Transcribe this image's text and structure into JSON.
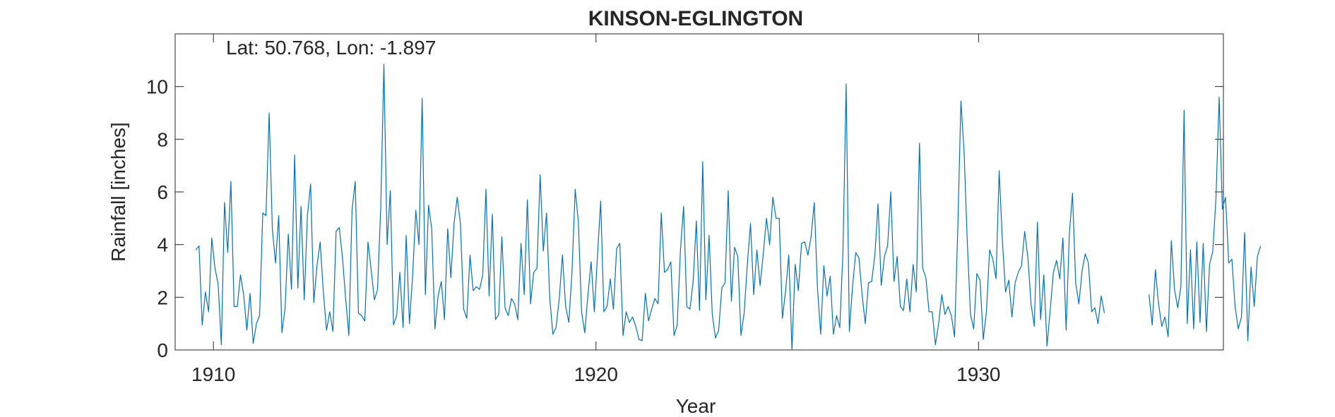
{
  "chart_data": {
    "type": "line",
    "title": "KINSON-EGLINGTON",
    "annotation": "Lat: 50.768, Lon: -1.897",
    "xlabel": "Year",
    "ylabel": "Rainfall [inches]",
    "xlim": [
      1909.0,
      1936.4
    ],
    "ylim": [
      0,
      12
    ],
    "x_ticks": [
      1910,
      1920,
      1930
    ],
    "x_tick_labels": [
      "1910",
      "1920",
      "1930"
    ],
    "y_ticks": [
      0,
      2,
      4,
      6,
      8,
      10
    ],
    "y_tick_labels": [
      "0",
      "2",
      "4",
      "6",
      "8",
      "10"
    ],
    "grid": false,
    "line_color": "#0072BD",
    "x_start": 1909.54,
    "x_step": 0.08333,
    "series": [
      {
        "values": [
          3.8,
          3.95,
          0.95,
          2.2,
          1.45,
          4.25,
          3.1,
          2.5,
          0.2,
          5.6,
          3.7,
          6.4,
          1.65,
          1.65,
          2.85,
          2.1,
          0.75,
          2.15,
          0.25,
          1.0,
          1.3,
          5.2,
          5.1,
          9.0,
          4.6,
          3.3,
          5.1,
          0.65,
          1.6,
          4.4,
          2.3,
          7.4,
          2.35,
          5.45,
          1.9,
          5.1,
          6.3,
          1.8,
          3.2,
          4.1,
          2.2,
          0.75,
          1.45,
          0.7,
          4.5,
          4.65,
          3.5,
          1.95,
          0.55,
          5.3,
          6.4,
          1.4,
          1.3,
          1.1,
          4.1,
          3.05,
          1.9,
          2.3,
          5.4,
          10.85,
          4.0,
          6.05,
          0.95,
          1.3,
          2.95,
          0.85,
          4.35,
          1.0,
          2.8,
          5.3,
          4.0,
          9.55,
          2.1,
          5.5,
          4.6,
          0.8,
          2.05,
          2.6,
          1.15,
          4.6,
          2.75,
          4.8,
          5.8,
          4.8,
          1.55,
          1.2,
          3.6,
          2.25,
          2.4,
          2.3,
          2.85,
          6.1,
          2.05,
          5.15,
          1.15,
          1.35,
          4.3,
          1.6,
          1.3,
          1.95,
          1.75,
          1.15,
          4.05,
          2.1,
          5.7,
          1.75,
          2.95,
          3.1,
          6.65,
          3.75,
          5.2,
          2.0,
          0.6,
          0.85,
          1.95,
          3.6,
          1.65,
          1.05,
          2.95,
          6.1,
          4.85,
          1.45,
          0.65,
          2.1,
          3.35,
          1.45,
          3.6,
          5.65,
          1.45,
          1.65,
          2.7,
          1.55,
          3.85,
          4.05,
          0.55,
          1.45,
          1.05,
          1.25,
          0.9,
          0.4,
          0.35,
          2.15,
          1.1,
          1.55,
          1.95,
          1.75,
          5.2,
          2.95,
          3.05,
          3.35,
          0.55,
          0.95,
          3.75,
          5.45,
          1.65,
          1.55,
          2.6,
          4.9,
          1.5,
          7.15,
          1.9,
          4.35,
          1.35,
          0.45,
          0.75,
          2.35,
          2.55,
          6.05,
          1.85,
          3.9,
          3.55,
          0.55,
          1.4,
          3.25,
          4.8,
          2.1,
          3.8,
          2.45,
          3.65,
          5.0,
          4.0,
          5.8,
          5.0,
          5.0,
          1.2,
          2.25,
          3.6,
          0.0,
          3.25,
          2.25,
          4.05,
          4.1,
          3.6,
          4.3,
          5.6,
          2.35,
          0.6,
          3.2,
          2.05,
          2.8,
          0.6,
          1.3,
          0.85,
          3.75,
          10.1,
          0.7,
          2.4,
          3.7,
          3.5,
          2.1,
          1.0,
          2.55,
          2.6,
          3.6,
          5.55,
          2.45,
          3.55,
          3.95,
          6.0,
          2.6,
          3.55,
          1.65,
          1.5,
          2.7,
          1.45,
          3.25,
          2.2,
          7.85,
          3.1,
          2.75,
          1.45,
          1.45,
          0.2,
          1.0,
          2.1,
          1.35,
          1.65,
          1.3,
          0.5,
          4.55,
          9.45,
          7.5,
          4.1,
          1.35,
          0.8,
          2.9,
          2.65,
          0.4,
          1.45,
          3.8,
          3.45,
          2.7,
          6.8,
          4.15,
          2.2,
          2.65,
          1.25,
          2.55,
          2.95,
          3.2,
          4.5,
          3.5,
          1.75,
          0.9,
          4.85,
          1.15,
          2.85,
          0.15,
          1.5,
          2.95,
          3.4,
          2.7,
          4.25,
          0.75,
          4.4,
          5.95,
          2.55,
          1.75,
          3.0,
          3.65,
          3.3,
          1.45,
          1.6,
          1.0,
          2.05,
          1.4,
          null,
          null,
          null,
          null,
          null,
          null,
          null,
          null,
          null,
          null,
          null,
          null,
          null,
          2.1,
          0.95,
          3.05,
          1.75,
          0.9,
          1.25,
          0.5,
          4.15,
          2.3,
          1.6,
          2.4,
          9.1,
          1.0,
          3.8,
          0.8,
          4.1,
          1.05,
          4.05,
          0.7,
          3.25,
          3.75,
          5.75,
          9.6,
          5.35,
          5.8,
          3.3,
          3.45,
          1.65,
          0.8,
          1.25,
          4.45,
          0.35,
          3.15,
          1.65,
          3.55,
          3.95
        ]
      }
    ]
  }
}
